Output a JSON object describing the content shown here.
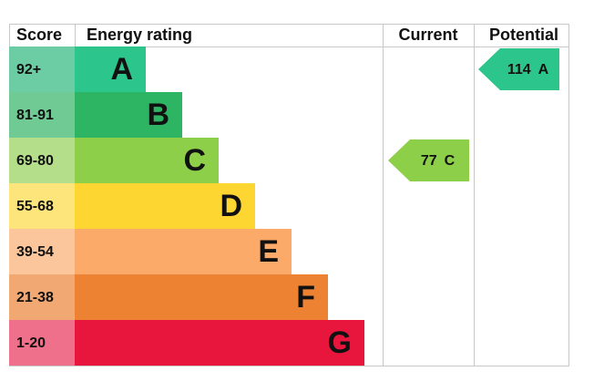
{
  "header": {
    "score": "Score",
    "rating": "Energy rating",
    "current": "Current",
    "potential": "Potential"
  },
  "bands": [
    {
      "range": "92+",
      "letter": "A",
      "color": "#2cc68c",
      "score_color": "#6ccca4"
    },
    {
      "range": "81-91",
      "letter": "B",
      "color": "#2db564",
      "score_color": "#6fca93"
    },
    {
      "range": "69-80",
      "letter": "C",
      "color": "#8ecf4a",
      "score_color": "#b4de89"
    },
    {
      "range": "55-68",
      "letter": "D",
      "color": "#fdd632",
      "score_color": "#fde47b"
    },
    {
      "range": "39-54",
      "letter": "E",
      "color": "#fbaa69",
      "score_color": "#fcc69c"
    },
    {
      "range": "21-38",
      "letter": "F",
      "color": "#ee8233",
      "score_color": "#f2a873"
    },
    {
      "range": "1-20",
      "letter": "G",
      "color": "#e8153c",
      "score_color": "#ee708a"
    }
  ],
  "current": {
    "score": 77,
    "letter": "C",
    "band": 2
  },
  "potential": {
    "score": 114,
    "letter": "A",
    "band": 0
  }
}
